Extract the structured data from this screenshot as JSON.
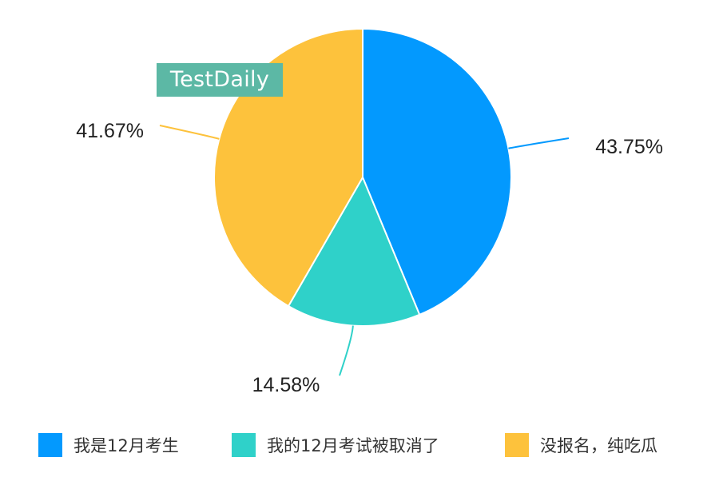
{
  "watermark": "TestDaily",
  "chart_data": {
    "type": "pie",
    "series": [
      {
        "name": "我是12月考生",
        "value": 43.75,
        "label": "43.75%",
        "color": "#0399fe"
      },
      {
        "name": "我的12月考试被取消了",
        "value": 14.58,
        "label": "14.58%",
        "color": "#2fd1c9"
      },
      {
        "name": "没报名，纯吃瓜",
        "value": 41.67,
        "label": "41.67%",
        "color": "#fdc23c"
      }
    ],
    "start_angle": "12 o'clock",
    "direction": "clockwise",
    "legend": "bottom"
  }
}
